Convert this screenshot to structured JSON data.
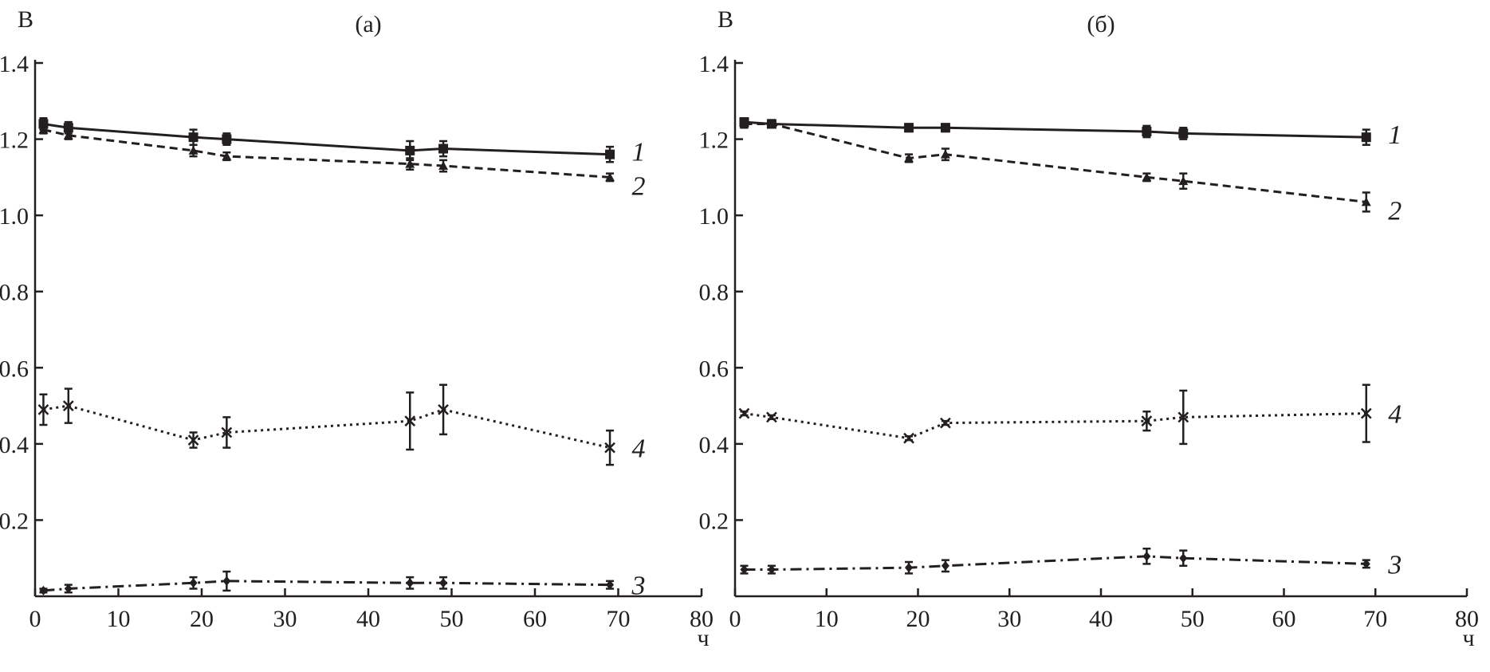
{
  "chart_data": [
    {
      "type": "line",
      "title": "(а)",
      "ylabel": "В",
      "xlabel": "ч",
      "xlim": [
        0,
        80
      ],
      "ylim": [
        0,
        1.4
      ],
      "xticks": [
        "0",
        "10",
        "20",
        "30",
        "40",
        "50",
        "60",
        "70",
        "80"
      ],
      "yticks": [
        "0.2",
        "0.4",
        "0.6",
        "0.8",
        "1.0",
        "1.2",
        "1.4"
      ],
      "x": [
        1,
        4,
        19,
        23,
        45,
        49,
        69
      ],
      "series": [
        {
          "name": "1",
          "style": "solid",
          "marker": "square",
          "values": [
            1.24,
            1.23,
            1.205,
            1.2,
            1.17,
            1.175,
            1.16
          ],
          "err": [
            0.015,
            0.015,
            0.02,
            0.015,
            0.025,
            0.02,
            0.02
          ]
        },
        {
          "name": "2",
          "style": "dashed",
          "marker": "triangle",
          "values": [
            1.225,
            1.21,
            1.17,
            1.155,
            1.135,
            1.13,
            1.1
          ],
          "err": [
            0.01,
            0.01,
            0.015,
            0.01,
            0.015,
            0.015,
            0.01
          ]
        },
        {
          "name": "4",
          "style": "dotted",
          "marker": "x",
          "values": [
            0.49,
            0.5,
            0.41,
            0.43,
            0.46,
            0.49,
            0.39
          ],
          "err": [
            0.04,
            0.045,
            0.02,
            0.04,
            0.075,
            0.065,
            0.045
          ]
        },
        {
          "name": "3",
          "style": "dashdot",
          "marker": "diamond",
          "values": [
            0.015,
            0.02,
            0.035,
            0.04,
            0.035,
            0.035,
            0.03
          ],
          "err": [
            0.005,
            0.01,
            0.015,
            0.025,
            0.015,
            0.015,
            0.01
          ]
        }
      ]
    },
    {
      "type": "line",
      "title": "(б)",
      "ylabel": "В",
      "xlabel": "ч",
      "xlim": [
        0,
        80
      ],
      "ylim": [
        0,
        1.4
      ],
      "xticks": [
        "0",
        "10",
        "20",
        "30",
        "40",
        "50",
        "60",
        "70",
        "80"
      ],
      "yticks": [
        "0.2",
        "0.4",
        "0.6",
        "0.8",
        "1.0",
        "1.2",
        "1.4"
      ],
      "x": [
        1,
        4,
        19,
        23,
        45,
        49,
        69
      ],
      "series": [
        {
          "name": "1",
          "style": "solid",
          "marker": "square",
          "values": [
            1.245,
            1.24,
            1.23,
            1.23,
            1.22,
            1.215,
            1.205
          ],
          "err": [
            0.01,
            0.01,
            0.01,
            0.01,
            0.015,
            0.015,
            0.02
          ]
        },
        {
          "name": "2",
          "style": "dashed",
          "marker": "triangle",
          "values": [
            1.24,
            1.24,
            1.15,
            1.16,
            1.1,
            1.09,
            1.035
          ],
          "err": [
            0.01,
            0.01,
            0.01,
            0.015,
            0.01,
            0.02,
            0.025
          ]
        },
        {
          "name": "4",
          "style": "dotted",
          "marker": "x",
          "values": [
            0.48,
            0.47,
            0.415,
            0.455,
            0.46,
            0.47,
            0.48
          ],
          "err": [
            0.005,
            0.005,
            0.005,
            0.005,
            0.025,
            0.07,
            0.075
          ]
        },
        {
          "name": "3",
          "style": "dashdot",
          "marker": "diamond",
          "values": [
            0.07,
            0.07,
            0.075,
            0.08,
            0.105,
            0.1,
            0.085
          ],
          "err": [
            0.01,
            0.01,
            0.015,
            0.015,
            0.02,
            0.02,
            0.01
          ]
        }
      ]
    }
  ]
}
